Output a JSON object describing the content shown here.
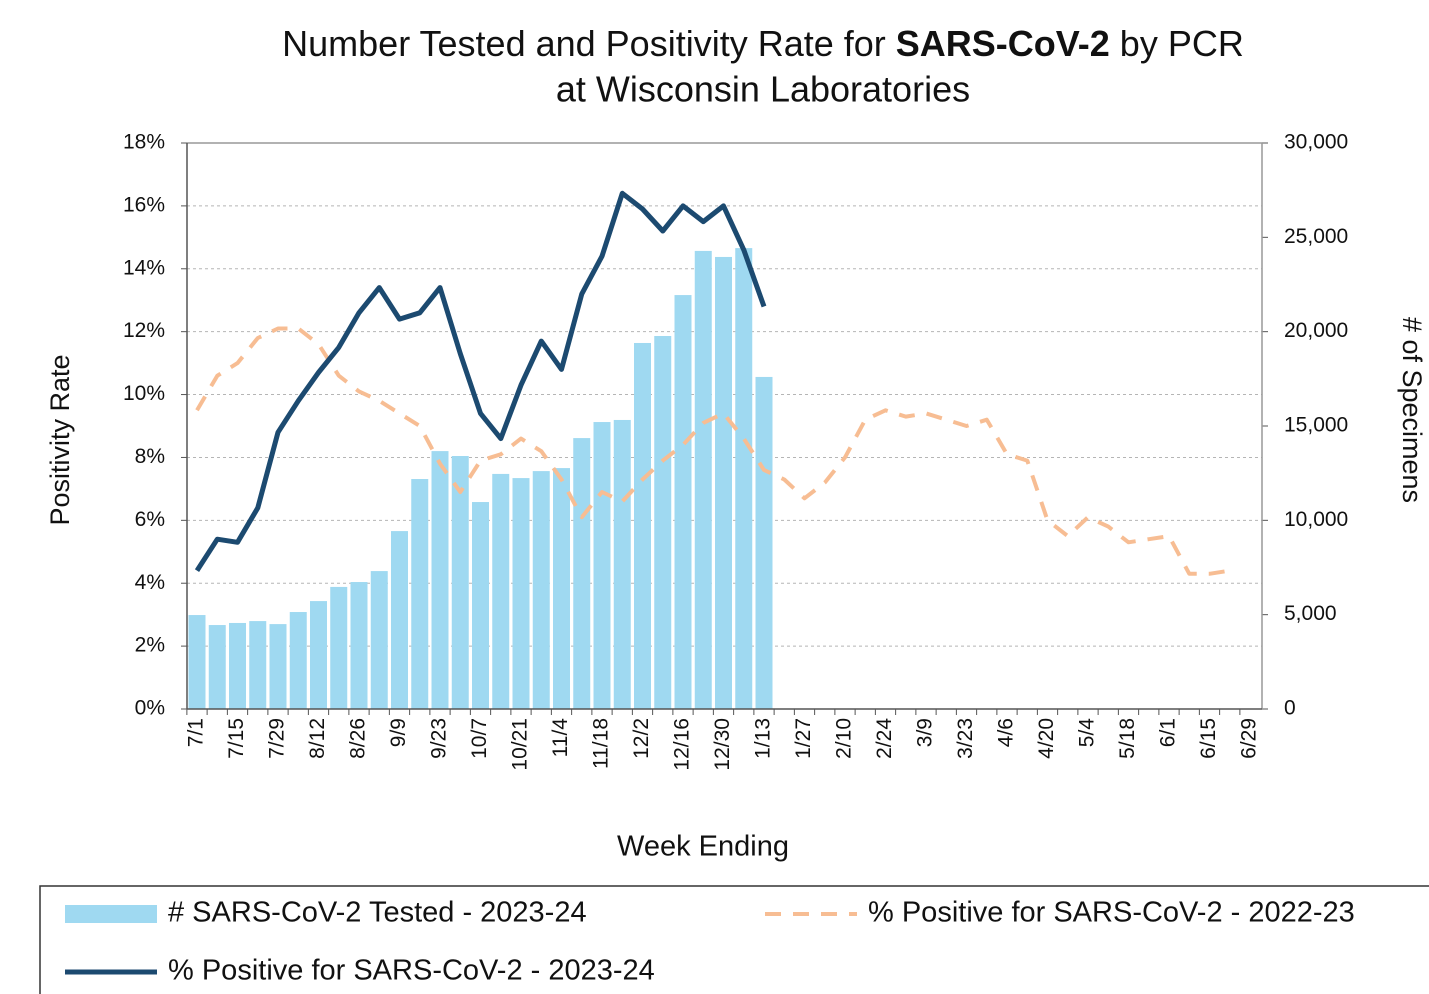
{
  "chart_data": {
    "type": "bar-line",
    "title": [
      "Number Tested and Positivity Rate for ",
      "SARS-CoV-2",
      " by PCR",
      "at Wisconsin Laboratories"
    ],
    "xlabel": "Week Ending",
    "ylabel": "Positivity Rate",
    "y2label": "# of Specimens",
    "categories": [
      "7/1",
      null,
      "7/15",
      null,
      "7/29",
      null,
      "8/12",
      null,
      "8/26",
      null,
      "9/9",
      null,
      "9/23",
      null,
      "10/7",
      null,
      "10/21",
      null,
      "11/4",
      null,
      "11/18",
      null,
      "12/2",
      null,
      "12/16",
      null,
      "12/30",
      null,
      "1/13",
      null,
      "1/27",
      null,
      "2/10",
      null,
      "2/24",
      null,
      "3/9",
      null,
      "3/23",
      null,
      "4/6",
      null,
      "4/20",
      null,
      "5/4",
      null,
      "5/18",
      null,
      "6/1",
      null,
      "6/15",
      null,
      "6/29"
    ],
    "ylim": [
      0,
      18
    ],
    "yticks": [
      {
        "value": 0,
        "label": "0%"
      },
      {
        "value": 2,
        "label": "2%"
      },
      {
        "value": 4,
        "label": "4%"
      },
      {
        "value": 6,
        "label": "6%"
      },
      {
        "value": 8,
        "label": "8%"
      },
      {
        "value": 10,
        "label": "10%"
      },
      {
        "value": 12,
        "label": "12%"
      },
      {
        "value": 14,
        "label": "14%"
      },
      {
        "value": 16,
        "label": "16%"
      },
      {
        "value": 18,
        "label": "18%"
      }
    ],
    "y2lim": [
      0,
      30000
    ],
    "y2ticks": [
      0,
      {
        "value": 5000,
        "label": "5,000"
      },
      {
        "value": 10000,
        "label": "10,000"
      },
      {
        "value": 15000,
        "label": "15,000"
      },
      {
        "value": 20000,
        "label": "20,000"
      },
      {
        "value": 25000,
        "label": "25,000"
      },
      {
        "value": 30000,
        "label": "30,000"
      }
    ],
    "grid": true,
    "series": [
      {
        "name": "# SARS-CoV-2 Tested - 2023-24",
        "type": "bar",
        "axis": "y2",
        "color": "#9fd9f1",
        "values": [
          4980,
          4450,
          4560,
          4660,
          4500,
          5140,
          5720,
          6470,
          6730,
          7310,
          9430,
          12190,
          13670,
          13410,
          10970,
          12460,
          12240,
          12610,
          12770,
          14360,
          15210,
          15320,
          19400,
          19770,
          21940,
          24280,
          23960,
          24430,
          17600,
          null,
          null,
          null,
          null,
          null,
          null,
          null,
          null,
          null,
          null,
          null,
          null,
          null,
          null,
          null,
          null,
          null,
          null,
          null,
          null,
          null,
          null,
          null,
          null
        ]
      },
      {
        "name": "% Positive for SARS-CoV-2 - 2022-23",
        "type": "line",
        "dashed": true,
        "color": "#f7bd93",
        "values": [
          9.5,
          10.6,
          11.0,
          11.8,
          12.1,
          12.1,
          11.6,
          10.6,
          10.1,
          9.8,
          9.4,
          9.0,
          7.8,
          6.9,
          7.9,
          8.1,
          8.6,
          8.2,
          7.3,
          6.1,
          6.9,
          6.6,
          7.3,
          7.9,
          8.4,
          9.1,
          9.4,
          8.6,
          7.6,
          7.3,
          6.7,
          7.2,
          8.0,
          9.2,
          9.5,
          9.3,
          9.4,
          9.2,
          9.0,
          9.2,
          8.1,
          7.9,
          6.0,
          5.5,
          6.1,
          5.8,
          5.3,
          5.4,
          5.5,
          4.3,
          4.3,
          4.4,
          null
        ]
      },
      {
        "name": "% Positive for SARS-CoV-2 - 2023-24",
        "type": "line",
        "color": "#1c4a70",
        "values": [
          4.4,
          5.4,
          5.3,
          6.4,
          8.8,
          9.8,
          10.7,
          11.5,
          12.6,
          13.4,
          12.4,
          12.6,
          13.4,
          11.3,
          9.4,
          8.6,
          10.3,
          11.7,
          10.8,
          13.2,
          14.4,
          16.4,
          15.9,
          15.2,
          16.0,
          15.5,
          16.0,
          14.6,
          12.8,
          null,
          null,
          null,
          null,
          null,
          null,
          null,
          null,
          null,
          null,
          null,
          null,
          null,
          null,
          null,
          null,
          null,
          null,
          null,
          null,
          null,
          null,
          null,
          null
        ]
      }
    ]
  }
}
